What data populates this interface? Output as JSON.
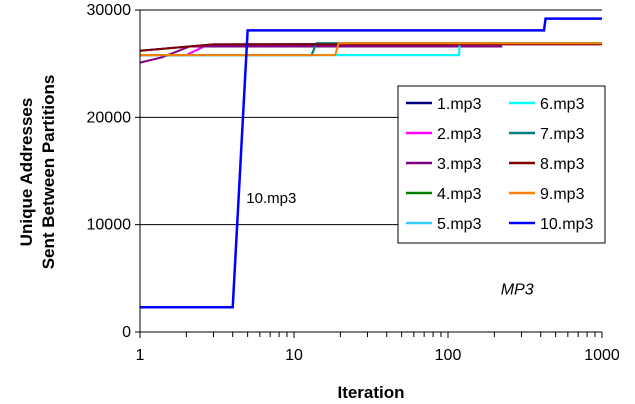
{
  "chart_data": {
    "type": "line",
    "title": "",
    "xlabel": "Iteration",
    "ylabel_line1": "Unique Addresses",
    "ylabel_line2": "Sent Between Partitions",
    "x_scale": "log",
    "xlim": [
      1,
      1000
    ],
    "ylim": [
      0,
      30000
    ],
    "x_ticks": [
      1,
      10,
      100,
      1000
    ],
    "x_tick_labels": [
      "1",
      "10",
      "100",
      "1000"
    ],
    "y_ticks": [
      0,
      10000,
      20000,
      30000
    ],
    "y_tick_labels": [
      "0",
      "10000",
      "20000",
      "30000"
    ],
    "grid": "horizontal major",
    "legend_position": "right",
    "annotations": [
      {
        "text": "10.mp3",
        "x": 4.9,
        "y": 12000,
        "style": "normal"
      },
      {
        "text": "MP3",
        "x": 220,
        "y": 3500,
        "style": "italic"
      }
    ],
    "series": [
      {
        "name": "1.mp3",
        "color": "#000080",
        "points": [
          [
            1,
            26200
          ],
          [
            3,
            26800
          ],
          [
            1000,
            26900
          ]
        ]
      },
      {
        "name": "2.mp3",
        "color": "#ff00ff",
        "points": [
          [
            1,
            25800
          ],
          [
            2,
            25800
          ],
          [
            2.6,
            26600
          ],
          [
            1000,
            26900
          ]
        ]
      },
      {
        "name": "3.mp3",
        "color": "#800080",
        "points": [
          [
            1,
            25100
          ],
          [
            1.4,
            25600
          ],
          [
            2.1,
            26600
          ],
          [
            225,
            26600
          ]
        ]
      },
      {
        "name": "4.mp3",
        "color": "#008000",
        "points": [
          [
            1,
            25800
          ],
          [
            13,
            25800
          ],
          [
            14,
            26900
          ],
          [
            1000,
            26900
          ]
        ]
      },
      {
        "name": "5.mp3",
        "color": "#33ccff",
        "points": [
          [
            1,
            25800
          ],
          [
            118,
            25800
          ],
          [
            119,
            26900
          ],
          [
            1000,
            26900
          ]
        ]
      },
      {
        "name": "6.mp3",
        "color": "#00ffff",
        "points": [
          [
            1,
            25800
          ],
          [
            118,
            25800
          ],
          [
            119,
            26900
          ],
          [
            1000,
            26900
          ]
        ]
      },
      {
        "name": "7.mp3",
        "color": "#008080",
        "points": [
          [
            1,
            25800
          ],
          [
            13,
            25800
          ],
          [
            14,
            26900
          ],
          [
            1000,
            26900
          ]
        ]
      },
      {
        "name": "8.mp3",
        "color": "#800000",
        "points": [
          [
            1,
            26200
          ],
          [
            3,
            26800
          ],
          [
            1000,
            26800
          ]
        ]
      },
      {
        "name": "9.mp3",
        "color": "#ff8000",
        "points": [
          [
            1,
            25800
          ],
          [
            18.5,
            25800
          ],
          [
            19.5,
            26900
          ],
          [
            1000,
            26900
          ]
        ]
      },
      {
        "name": "10.mp3",
        "color": "#0000ff",
        "points": [
          [
            1,
            2300
          ],
          [
            4,
            2300
          ],
          [
            5,
            28100
          ],
          [
            420,
            28100
          ],
          [
            430,
            29200
          ],
          [
            1000,
            29200
          ]
        ]
      }
    ]
  }
}
